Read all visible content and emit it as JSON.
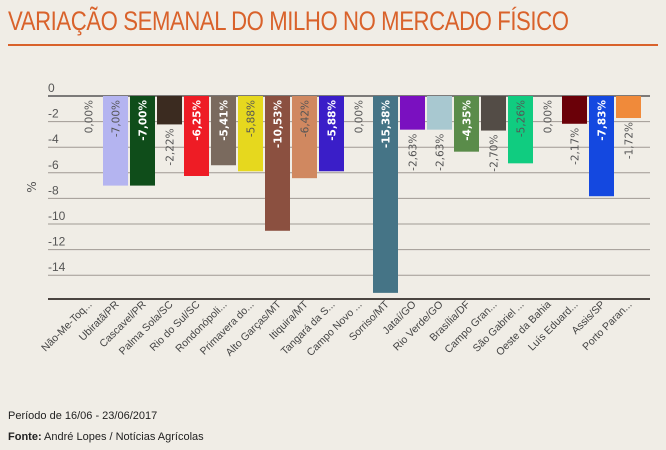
{
  "chart_data": {
    "type": "bar",
    "title": "VARIAÇÃO SEMANAL DO MILHO NO MERCADO FÍSICO",
    "ylabel": "%",
    "ylim": [
      -16.2,
      0
    ],
    "yticks": [
      0,
      -2,
      -4,
      -6,
      -8,
      -10,
      -12,
      -14
    ],
    "grid": true,
    "categories": [
      "Não-Me-Toq...",
      "Ubiratã/PR",
      "Cascavel/PR",
      "Palma Sola/SC",
      "Rio do Sul/SC",
      "Rondonópoli...",
      "Primavera do...",
      "Alto Garças/MT",
      "Itiquira/MT",
      "Tangará da S...",
      "Campo Novo ...",
      "Sorriso/MT",
      "Jataí/GO",
      "Rio Verde/GO",
      "Brasília/DF",
      "Campo Gran...",
      "São Gabriel ...",
      "Oeste da Bahia",
      "Luís Eduard...",
      "Assis/SP",
      "Porto Paran..."
    ],
    "values": [
      0,
      -7.0,
      -7.0,
      -2.22,
      -6.25,
      -5.41,
      -5.88,
      -10.53,
      -6.42,
      -5.88,
      0,
      -15.38,
      -2.63,
      -2.63,
      -4.35,
      -2.7,
      -5.26,
      0,
      -2.17,
      -7.83,
      -1.72
    ],
    "data_labels": [
      "0,00%",
      "-7,00%",
      "-7,00%",
      "-2,22%",
      "-6,25%",
      "-5,41%",
      "-5,88%",
      "-10,53%",
      "-6,42%",
      "-5,88%",
      "0,00%",
      "-15,38%",
      "-2,63%",
      "-2,63%",
      "-4,35%",
      "-2,70%",
      "-5,26%",
      "0,00%",
      "-2,17%",
      "-7,83%",
      "-1,72%"
    ],
    "colors": [
      "#cccccc",
      "#b4b4f0",
      "#0f4d1a",
      "#3b2b20",
      "#ee1c25",
      "#7a6a5e",
      "#e6d81e",
      "#8b5040",
      "#d08860",
      "#3a1ec8",
      "#cccccc",
      "#457486",
      "#7a10c0",
      "#a8c8d0",
      "#5a8c4a",
      "#534c46",
      "#10cc80",
      "#cccccc",
      "#6a0008",
      "#1448e0",
      "#f08a3a"
    ]
  },
  "footer": {
    "period": "Período de 16/06 - 23/06/2017",
    "source_label": "Fonte:",
    "source": " André Lopes / Notícias Agrícolas"
  }
}
